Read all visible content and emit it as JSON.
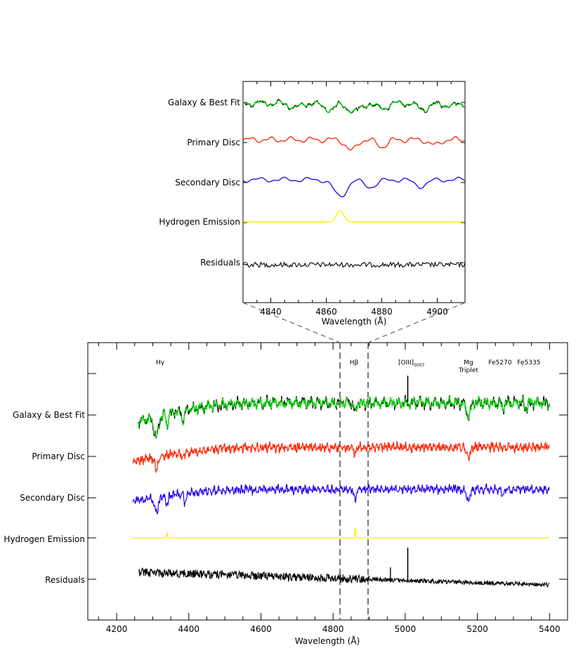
{
  "chart_data": [
    {
      "type": "line",
      "name": "zoom-panel",
      "xlabel": "Wavelength (Å)",
      "xlim": [
        4830,
        4910
      ],
      "x_ticks": [
        4840,
        4860,
        4880,
        4900
      ],
      "tick_labels": [
        "4840",
        "4860",
        "4880",
        "4900"
      ],
      "series_labels": [
        "Galaxy & Best Fit",
        "Primary Disc",
        "Secondary Disc",
        "Hydrogen Emission",
        "Residuals"
      ],
      "series": [
        {
          "name": "Galaxy & Best Fit",
          "color": "#000000",
          "fit_color": "#00dd00",
          "absorption_lines": [
            4849,
            4861,
            4870,
            4880,
            4895,
            4905
          ]
        },
        {
          "name": "Primary Disc",
          "color": "#ff2200",
          "absorption_lines": [
            4869,
            4880,
            4899
          ]
        },
        {
          "name": "Secondary Disc",
          "color": "#2200ee",
          "absorption_lines": [
            4865,
            4876,
            4894
          ]
        },
        {
          "name": "Hydrogen Emission",
          "color": "#ffee00",
          "emission_lines": [
            4865
          ]
        },
        {
          "name": "Residuals",
          "color": "#000000"
        }
      ]
    },
    {
      "type": "line",
      "name": "full-spectrum",
      "xlabel": "Wavelength (Å)",
      "xlim": [
        4120,
        5450
      ],
      "x_ticks": [
        4200,
        4400,
        4600,
        4800,
        5000,
        5200,
        5400
      ],
      "tick_labels": [
        "4200",
        "4400",
        "4600",
        "4800",
        "5000",
        "5200",
        "5400"
      ],
      "zoom_region": [
        4830,
        4910
      ],
      "series_labels": [
        "Galaxy & Best Fit",
        "Primary Disc",
        "Secondary Disc",
        "Hydrogen Emission",
        "Residuals"
      ],
      "line_annotations": [
        {
          "text": "Hγ",
          "x": 4340
        },
        {
          "text": "Hβ",
          "x": 4861
        },
        {
          "text": "[OIII]5007",
          "x": 5007
        },
        {
          "text": "Mg Triplet",
          "x": 5175
        },
        {
          "text": "Fe5270",
          "x": 5270
        },
        {
          "text": "Fe5335",
          "x": 5335
        }
      ],
      "series": [
        {
          "name": "Galaxy & Best Fit",
          "color": "#000000",
          "fit_color": "#00dd00",
          "x_range": [
            4260,
            5400
          ]
        },
        {
          "name": "Primary Disc",
          "color": "#ff2200",
          "x_range": [
            4245,
            5400
          ]
        },
        {
          "name": "Secondary Disc",
          "color": "#2200ee",
          "x_range": [
            4245,
            5400
          ]
        },
        {
          "name": "Hydrogen Emission",
          "color": "#ffee00",
          "x_range": [
            4245,
            5400
          ],
          "emission_lines": [
            4340,
            4861
          ]
        },
        {
          "name": "Residuals",
          "color": "#000000",
          "x_range": [
            4260,
            5400
          ],
          "emission_lines": [
            4959,
            5007
          ]
        }
      ]
    }
  ],
  "labels": {
    "zoom_xlabel": "Wavelength (Å)",
    "main_xlabel": "Wavelength (Å)",
    "row_galaxy": "Galaxy & Best Fit",
    "row_primary": "Primary Disc",
    "row_secondary": "Secondary Disc",
    "row_hydrogen": "Hydrogen Emission",
    "row_residuals": "Residuals",
    "ann_hgamma": "Hγ",
    "ann_hbeta": "Hβ",
    "ann_oiii": "[OIII]",
    "ann_oiii_sub": "5007",
    "ann_mg1": "Mg",
    "ann_mg2": "Triplet",
    "ann_fe5270": "Fe5270",
    "ann_fe5335": "Fe5335"
  }
}
